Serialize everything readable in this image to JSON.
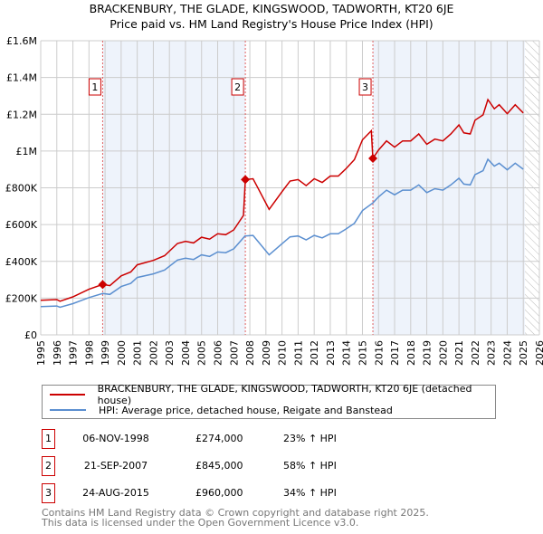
{
  "title": "BRACKENBURY, THE GLADE, KINGSWOOD, TADWORTH, KT20 6JE",
  "subtitle": "Price paid vs. HM Land Registry's House Price Index (HPI)",
  "colors": {
    "property": "#cc0000",
    "hpi": "#5b8fd0",
    "shade": "#eef3fb",
    "grid": "#cccccc"
  },
  "chart_data": {
    "type": "line",
    "title": "BRACKENBURY, THE GLADE, KINGSWOOD, TADWORTH, KT20 6JE",
    "subtitle": "Price paid vs. HM Land Registry's House Price Index (HPI)",
    "xlim": [
      1995,
      2026
    ],
    "ylim": [
      0,
      1600000
    ],
    "grid": true,
    "x_ticks": [
      "1995",
      "1996",
      "1997",
      "1998",
      "1999",
      "2000",
      "2001",
      "2002",
      "2003",
      "2004",
      "2005",
      "2006",
      "2007",
      "2008",
      "2009",
      "2010",
      "2011",
      "2012",
      "2013",
      "2014",
      "2015",
      "2016",
      "2017",
      "2018",
      "2019",
      "2020",
      "2021",
      "2022",
      "2023",
      "2024",
      "2025",
      "2026"
    ],
    "y_ticks": [
      {
        "v": 0,
        "label": "£0"
      },
      {
        "v": 200000,
        "label": "£200K"
      },
      {
        "v": 400000,
        "label": "£400K"
      },
      {
        "v": 600000,
        "label": "£600K"
      },
      {
        "v": 800000,
        "label": "£800K"
      },
      {
        "v": 1000000,
        "label": "£1M"
      },
      {
        "v": 1200000,
        "label": "£1.2M"
      },
      {
        "v": 1400000,
        "label": "£1.4M"
      },
      {
        "v": 1600000,
        "label": "£1.6M"
      }
    ],
    "shaded_ranges": [
      [
        1998.85,
        2007.72
      ],
      [
        2015.65,
        2025.1
      ]
    ],
    "hatched_from": 2025.1,
    "series": [
      {
        "name": "BRACKENBURY, THE GLADE, KINGSWOOD, TADWORTH, KT20 6JE (detached house)",
        "color": "#cc0000",
        "x": [
          1995,
          1996,
          1996.2,
          1997,
          1998,
          1998.85,
          1999.3,
          2000,
          2000.6,
          2001,
          2002,
          2002.7,
          2003.5,
          2004,
          2004.5,
          2005,
          2005.5,
          2006,
          2006.5,
          2007,
          2007.6,
          2007.72,
          2008.2,
          2008.5,
          2009.2,
          2010,
          2010.5,
          2011,
          2011.5,
          2012,
          2012.5,
          2013,
          2013.5,
          2014,
          2014.5,
          2015,
          2015.55,
          2015.65,
          2016,
          2016.5,
          2017,
          2017.5,
          2018,
          2018.5,
          2019,
          2019.5,
          2020,
          2020.5,
          2021,
          2021.3,
          2021.7,
          2022,
          2022.5,
          2022.8,
          2023.2,
          2023.5,
          2024,
          2024.5,
          2025
        ],
        "values": [
          188000,
          192000,
          183000,
          207000,
          248000,
          274000,
          268000,
          321000,
          342000,
          381000,
          405000,
          431000,
          497000,
          509000,
          500000,
          531000,
          521000,
          550000,
          545000,
          571000,
          650000,
          845000,
          849000,
          799000,
          683000,
          779000,
          837000,
          845000,
          812000,
          849000,
          829000,
          864000,
          864000,
          906000,
          953000,
          1061000,
          1110000,
          960000,
          1006000,
          1055000,
          1021000,
          1055000,
          1055000,
          1093000,
          1037000,
          1065000,
          1055000,
          1093000,
          1142000,
          1099000,
          1093000,
          1168000,
          1197000,
          1280000,
          1230000,
          1252000,
          1203000,
          1252000,
          1207000
        ]
      },
      {
        "name": "HPI: Average price, detached house, Reigate and Banstead",
        "color": "#5b8fd0",
        "x": [
          1995,
          1996,
          1996.2,
          1997,
          1998,
          1998.85,
          1999.3,
          2000,
          2000.6,
          2001,
          2002,
          2002.7,
          2003.5,
          2004,
          2004.5,
          2005,
          2005.5,
          2006,
          2006.5,
          2007,
          2007.7,
          2008.2,
          2008.5,
          2009.2,
          2010,
          2010.5,
          2011,
          2011.5,
          2012,
          2012.5,
          2013,
          2013.5,
          2014,
          2014.5,
          2015,
          2015.65,
          2016,
          2016.5,
          2017,
          2017.5,
          2018,
          2018.5,
          2019,
          2019.5,
          2020,
          2020.5,
          2021,
          2021.3,
          2021.7,
          2022,
          2022.5,
          2022.8,
          2023.2,
          2023.5,
          2024,
          2024.5,
          2025
        ],
        "values": [
          154000,
          157000,
          150000,
          170000,
          203000,
          225000,
          220000,
          263000,
          280000,
          312000,
          332000,
          353000,
          407000,
          417000,
          410000,
          435000,
          427000,
          451000,
          447000,
          468000,
          538000,
          541000,
          509000,
          435000,
          496000,
          533000,
          538000,
          517000,
          541000,
          528000,
          550000,
          550000,
          577000,
          607000,
          676000,
          718000,
          751000,
          787000,
          762000,
          787000,
          787000,
          816000,
          774000,
          795000,
          787000,
          816000,
          852000,
          820000,
          816000,
          872000,
          893000,
          955000,
          918000,
          934000,
          898000,
          934000,
          901000
        ]
      }
    ],
    "sales": [
      {
        "id": "1",
        "x": 1998.85,
        "value": 274000
      },
      {
        "id": "2",
        "x": 2007.72,
        "value": 845000
      },
      {
        "id": "3",
        "x": 2015.65,
        "value": 960000
      }
    ]
  },
  "legend": [
    {
      "label": "BRACKENBURY, THE GLADE, KINGSWOOD, TADWORTH, KT20 6JE (detached house)"
    },
    {
      "label": "HPI: Average price, detached house, Reigate and Banstead"
    }
  ],
  "table": [
    {
      "num": "1",
      "date": "06-NOV-1998",
      "price": "£274,000",
      "hpi": "23% ↑ HPI"
    },
    {
      "num": "2",
      "date": "21-SEP-2007",
      "price": "£845,000",
      "hpi": "58% ↑ HPI"
    },
    {
      "num": "3",
      "date": "24-AUG-2015",
      "price": "£960,000",
      "hpi": "34% ↑ HPI"
    }
  ],
  "footer": {
    "line1": "Contains HM Land Registry data © Crown copyright and database right 2025.",
    "line2": "This data is licensed under the Open Government Licence v3.0."
  }
}
